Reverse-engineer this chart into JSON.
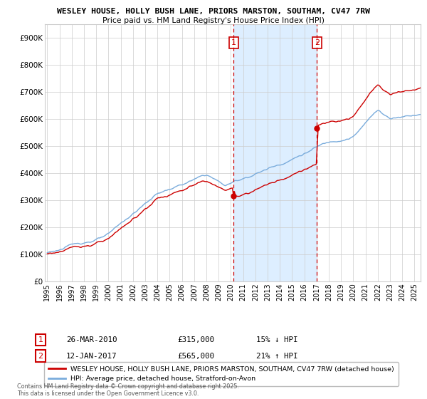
{
  "title_line1": "WESLEY HOUSE, HOLLY BUSH LANE, PRIORS MARSTON, SOUTHAM, CV47 7RW",
  "title_line2": "Price paid vs. HM Land Registry's House Price Index (HPI)",
  "ylim": [
    0,
    950000
  ],
  "yticks": [
    0,
    100000,
    200000,
    300000,
    400000,
    500000,
    600000,
    700000,
    800000,
    900000
  ],
  "ytick_labels": [
    "£0",
    "£100K",
    "£200K",
    "£300K",
    "£400K",
    "£500K",
    "£600K",
    "£700K",
    "£800K",
    "£900K"
  ],
  "xlim_start": 1994.8,
  "xlim_end": 2025.5,
  "xticks": [
    1995,
    1996,
    1997,
    1998,
    1999,
    2000,
    2001,
    2002,
    2003,
    2004,
    2005,
    2006,
    2007,
    2008,
    2009,
    2010,
    2011,
    2012,
    2013,
    2014,
    2015,
    2016,
    2017,
    2018,
    2019,
    2020,
    2021,
    2022,
    2023,
    2024,
    2025
  ],
  "marker1_x": 2010.23,
  "marker1_label": "1",
  "marker1_date": "26-MAR-2010",
  "marker1_price": "£315,000",
  "marker1_hpi": "15% ↓ HPI",
  "marker2_x": 2017.04,
  "marker2_label": "2",
  "marker2_date": "12-JAN-2017",
  "marker2_price": "£565,000",
  "marker2_hpi": "21% ↑ HPI",
  "red_line_color": "#cc0000",
  "blue_line_color": "#7aacdc",
  "shade_color": "#ddeeff",
  "background_color": "#ffffff",
  "grid_color": "#cccccc",
  "legend_line1": "WESLEY HOUSE, HOLLY BUSH LANE, PRIORS MARSTON, SOUTHAM, CV47 7RW (detached house)",
  "legend_line2": "HPI: Average price, detached house, Stratford-on-Avon",
  "footer": "Contains HM Land Registry data © Crown copyright and database right 2025.\nThis data is licensed under the Open Government Licence v3.0."
}
